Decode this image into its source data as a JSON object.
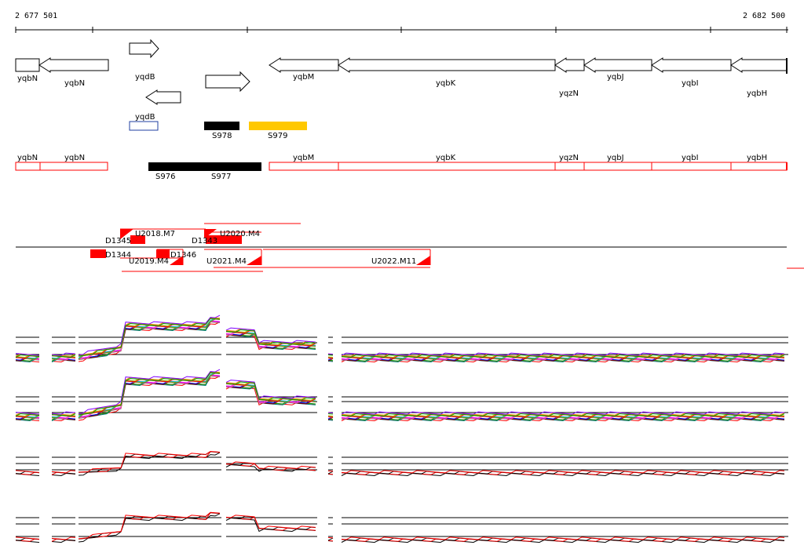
{
  "ruler": {
    "start_label": "2 677 501",
    "end_label": "2 682 500"
  },
  "colors": {
    "outline": "#000000",
    "red": "#ff0000",
    "blue": "#1f3fa0",
    "black_feature": "#000000",
    "yellow_feature": "#ffc800"
  },
  "genes_top": [
    {
      "name": "yqbN",
      "label": "yqbN"
    },
    {
      "name": "yqbN-2",
      "label": "yqbN"
    },
    {
      "name": "yqdB-fwd",
      "label": "yqdB"
    },
    {
      "name": "yqbM",
      "label": "yqbM"
    },
    {
      "name": "yqbK",
      "label": "yqbK"
    },
    {
      "name": "yqzN",
      "label": "yqzN"
    },
    {
      "name": "yqbJ",
      "label": "yqbJ"
    },
    {
      "name": "yqbI",
      "label": "yqbI"
    },
    {
      "name": "yqbH",
      "label": "yqbH"
    },
    {
      "name": "yqdB-rev",
      "label": "yqdB"
    }
  ],
  "small_features": [
    {
      "name": "S978",
      "label": "S978"
    },
    {
      "name": "S979",
      "label": "S979"
    }
  ],
  "genes_second": [
    {
      "name": "yqbN",
      "label": "yqbN"
    },
    {
      "name": "yqbN-2",
      "label": "yqbN"
    },
    {
      "name": "yqbM",
      "label": "yqbM"
    },
    {
      "name": "yqbK",
      "label": "yqbK"
    },
    {
      "name": "yqzN",
      "label": "yqzN"
    },
    {
      "name": "yqbJ",
      "label": "yqbJ"
    },
    {
      "name": "yqbI",
      "label": "yqbI"
    },
    {
      "name": "yqbH",
      "label": "yqbH"
    }
  ],
  "second_features": [
    {
      "name": "S976",
      "label": "S976"
    },
    {
      "name": "S977",
      "label": "S977"
    }
  ],
  "transcripts": [
    {
      "name": "U2018",
      "label": "U2018.M7"
    },
    {
      "name": "U2020",
      "label": "U2020.M4"
    },
    {
      "name": "D1345",
      "label": "D1345"
    },
    {
      "name": "D1343",
      "label": "D1343"
    },
    {
      "name": "D1344",
      "label": "D1344"
    },
    {
      "name": "U2019",
      "label": "U2019.M4"
    },
    {
      "name": "D1346",
      "label": "D1346"
    },
    {
      "name": "U2021",
      "label": "U2021.M4"
    },
    {
      "name": "U2022",
      "label": "U2022.M11"
    }
  ]
}
